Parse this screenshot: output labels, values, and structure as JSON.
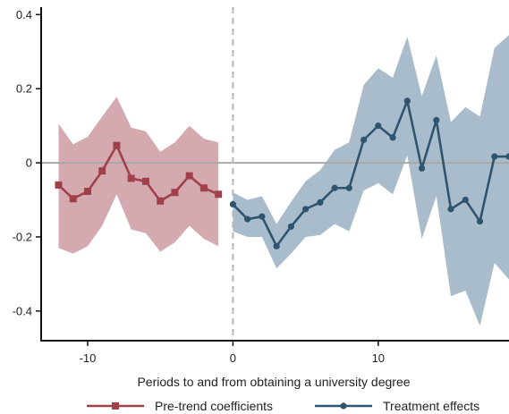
{
  "chart_data": {
    "type": "line",
    "title": "",
    "xlabel": "Periods to and from obtaining a university degree",
    "ylabel": "",
    "xlim": [
      -13.2,
      19
    ],
    "ylim": [
      -0.48,
      0.42
    ],
    "x_ticks": [
      -10,
      0,
      10
    ],
    "x_tick_labels": [
      "-10",
      "0",
      "10"
    ],
    "y_ticks": [
      -0.4,
      -0.2,
      0,
      0.2,
      0.4
    ],
    "y_tick_labels": [
      "-0.4",
      "-0.2",
      "0",
      "0.2",
      "0.4"
    ],
    "event_line_x": 0,
    "zero_line_y": 0,
    "grid": false,
    "legend_position": "bottom",
    "series": [
      {
        "name": "Pre-trend coefficients",
        "color": "#a0404a",
        "band_color": "#d4aab0",
        "marker": "square",
        "x": [
          -12,
          -11,
          -10,
          -9,
          -8,
          -7,
          -6,
          -5,
          -4,
          -3,
          -2,
          -1
        ],
        "values": [
          -0.06,
          -0.097,
          -0.077,
          -0.022,
          0.047,
          -0.042,
          -0.05,
          -0.103,
          -0.08,
          -0.035,
          -0.068,
          -0.085
        ],
        "lower": [
          -0.23,
          -0.245,
          -0.225,
          -0.17,
          -0.085,
          -0.18,
          -0.19,
          -0.24,
          -0.215,
          -0.17,
          -0.205,
          -0.225
        ],
        "upper": [
          0.105,
          0.05,
          0.07,
          0.125,
          0.178,
          0.095,
          0.085,
          0.03,
          0.055,
          0.1,
          0.065,
          0.055
        ]
      },
      {
        "name": "Treatment effects",
        "color": "#2e5470",
        "band_color": "#a9bccb",
        "marker": "circle",
        "x": [
          0,
          1,
          2,
          3,
          4,
          5,
          6,
          7,
          8,
          9,
          10,
          11,
          12,
          13,
          14,
          15,
          16,
          17,
          18,
          19
        ],
        "values": [
          -0.112,
          -0.152,
          -0.145,
          -0.225,
          -0.172,
          -0.125,
          -0.107,
          -0.068,
          -0.068,
          0.062,
          0.1,
          0.068,
          0.167,
          -0.015,
          0.115,
          -0.125,
          -0.1,
          -0.158,
          0.017,
          0.017
        ],
        "lower": [
          -0.185,
          -0.2,
          -0.2,
          -0.285,
          -0.245,
          -0.2,
          -0.195,
          -0.165,
          -0.185,
          -0.075,
          -0.055,
          -0.085,
          0.02,
          -0.205,
          -0.09,
          -0.36,
          -0.345,
          -0.44,
          -0.27,
          -0.315
        ],
        "upper": [
          -0.08,
          -0.1,
          -0.09,
          -0.165,
          -0.105,
          -0.05,
          -0.02,
          0.035,
          0.055,
          0.21,
          0.255,
          0.23,
          0.34,
          0.18,
          0.29,
          0.11,
          0.15,
          0.125,
          0.31,
          0.345
        ]
      }
    ]
  }
}
